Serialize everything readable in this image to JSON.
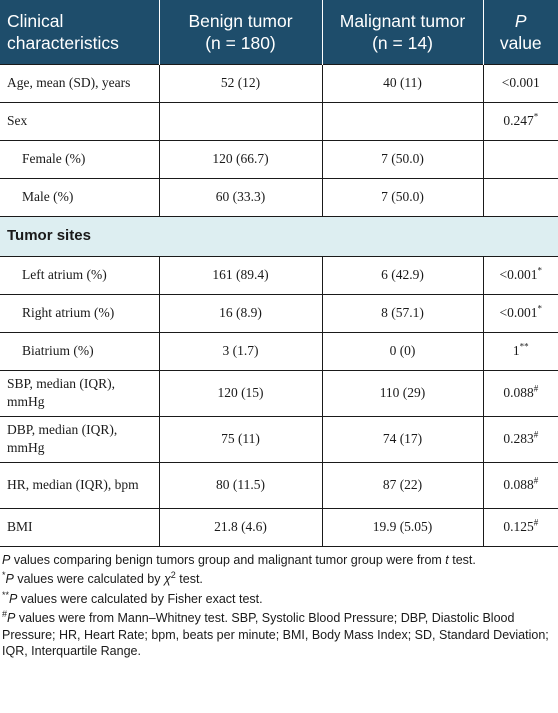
{
  "table": {
    "headers": [
      {
        "main": "Clinical",
        "sub": "characteristics"
      },
      {
        "main": "Benign tumor",
        "sub": "(n = 180)"
      },
      {
        "main": "Malignant tumor",
        "sub": "(n = 14)"
      },
      {
        "main": "P",
        "sub": "value"
      }
    ],
    "rows": [
      {
        "label": "Age, mean (SD), years",
        "benign": "52 (12)",
        "malignant": "40 (11)",
        "p": "<0.001",
        "mark": ""
      },
      {
        "label": "Sex",
        "benign": "",
        "malignant": "",
        "p": "0.247",
        "mark": "*"
      },
      {
        "label": "Female (%)",
        "benign": "120 (66.7)",
        "malignant": "7 (50.0)",
        "p": "",
        "mark": ""
      },
      {
        "label": "Male (%)",
        "benign": "60 (33.3)",
        "malignant": "7 (50.0)",
        "p": "",
        "mark": ""
      },
      {
        "label": "Tumor sites"
      },
      {
        "label": "Left atrium (%)",
        "benign": "161 (89.4)",
        "malignant": "6 (42.9)",
        "p": "<0.001",
        "mark": "*"
      },
      {
        "label": "Right atrium (%)",
        "benign": "16 (8.9)",
        "malignant": "8 (57.1)",
        "p": "<0.001",
        "mark": "*"
      },
      {
        "label": "Biatrium (%)",
        "benign": "3 (1.7)",
        "malignant": "0 (0)",
        "p": "1",
        "mark": "**"
      },
      {
        "label": "SBP, median (IQR), mmHg",
        "benign": "120 (15)",
        "malignant": "110 (29)",
        "p": "0.088",
        "mark": "#"
      },
      {
        "label": "DBP, median (IQR), mmHg",
        "benign": "75 (11)",
        "malignant": "74 (17)",
        "p": "0.283",
        "mark": "#"
      },
      {
        "label": "HR, median (IQR), bpm",
        "benign": "80 (11.5)",
        "malignant": "87 (22)",
        "p": "0.088",
        "mark": "#"
      },
      {
        "label": "BMI",
        "benign": "21.8 (4.6)",
        "malignant": "19.9 (5.05)",
        "p": "0.125",
        "mark": "#"
      }
    ]
  },
  "footnotes": {
    "note1_italic": "P",
    "note1_text": " values comparing benign tumors group and malignant tumor group were from ",
    "note1_italic2": "t",
    "note1_tail": " test.",
    "note2_mark": "*",
    "note2_italic": "P",
    "note2_text": " values were calculated by ",
    "note2_chi": "χ",
    "note2_sup": "2",
    "note2_tail": " test.",
    "note3_mark": "**",
    "note3_italic": "P",
    "note3_text": " values were calculated by Fisher exact test.",
    "note4_mark": "#",
    "note4_italic": "P",
    "note4_text": " values were from Mann–Whitney test. SBP, Systolic Blood Pressure; DBP, Diastolic Blood Pressure; HR, Heart Rate; bpm, beats per minute; BMI, Body Mass Index; SD, Standard Deviation; IQR, Interquartile Range."
  }
}
